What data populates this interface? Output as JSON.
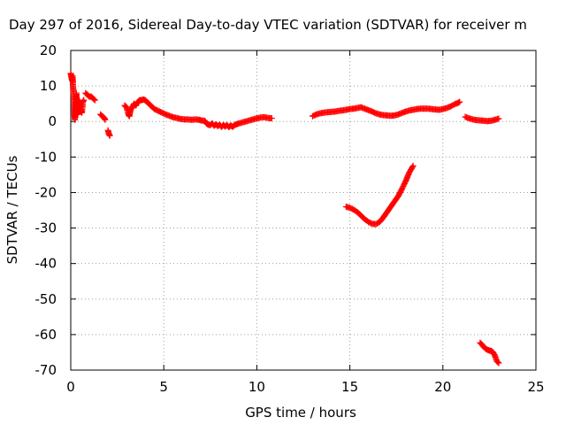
{
  "chart_data": {
    "type": "scatter",
    "title": "Day 297 of 2016, Sidereal Day-to-day VTEC variation (SDTVAR) for receiver m",
    "xlabel": "GPS time / hours",
    "ylabel": "SDTVAR / TECUs",
    "xlim": [
      0,
      25
    ],
    "ylim": [
      -70,
      20
    ],
    "xticks": [
      0,
      5,
      10,
      15,
      20,
      25
    ],
    "yticks": [
      20,
      10,
      0,
      -10,
      -20,
      -30,
      -40,
      -50,
      -60,
      -70
    ],
    "grid": true,
    "marker": "+",
    "color": "#ff0000",
    "series": [
      {
        "segments": [
          [
            [
              0.0,
              13.5
            ],
            [
              0.02,
              13.0
            ],
            [
              0.05,
              12.0
            ],
            [
              0.08,
              11.5
            ],
            [
              0.1,
              12.8
            ],
            [
              0.12,
              10.0
            ],
            [
              0.15,
              8.0
            ],
            [
              0.18,
              6.0
            ],
            [
              0.2,
              2.0
            ],
            [
              0.22,
              0.5
            ],
            [
              0.25,
              4.0
            ],
            [
              0.28,
              6.5
            ],
            [
              0.3,
              8.0
            ],
            [
              0.32,
              5.0
            ],
            [
              0.35,
              3.0
            ],
            [
              0.38,
              2.0
            ],
            [
              0.4,
              4.5
            ],
            [
              0.45,
              6.0
            ],
            [
              0.5,
              5.0
            ],
            [
              0.55,
              3.0
            ],
            [
              0.6,
              2.5
            ],
            [
              0.65,
              5.5
            ],
            [
              0.7,
              6.0
            ]
          ],
          [
            [
              0.8,
              8.0
            ],
            [
              0.9,
              7.5
            ],
            [
              1.0,
              7.0
            ],
            [
              1.1,
              7.0
            ],
            [
              1.2,
              6.5
            ],
            [
              1.3,
              6.0
            ]
          ],
          [
            [
              1.6,
              2.0
            ],
            [
              1.7,
              1.5
            ],
            [
              1.8,
              1.0
            ],
            [
              1.85,
              0.5
            ]
          ],
          [
            [
              2.0,
              -2.5
            ],
            [
              2.05,
              -3.5
            ],
            [
              2.1,
              -4.0
            ]
          ],
          [
            [
              2.9,
              4.5
            ],
            [
              3.0,
              4.0
            ],
            [
              3.1,
              2.0
            ],
            [
              3.15,
              1.5
            ],
            [
              3.2,
              3.0
            ],
            [
              3.3,
              4.0
            ],
            [
              3.4,
              5.0
            ],
            [
              3.5,
              4.5
            ],
            [
              3.6,
              5.5
            ],
            [
              3.7,
              6.0
            ],
            [
              3.8,
              6.0
            ],
            [
              3.9,
              6.2
            ],
            [
              4.0,
              6.0
            ],
            [
              4.1,
              5.5
            ],
            [
              4.2,
              5.0
            ],
            [
              4.3,
              4.5
            ],
            [
              4.4,
              4.0
            ],
            [
              4.5,
              3.5
            ],
            [
              4.7,
              3.0
            ],
            [
              4.9,
              2.5
            ],
            [
              5.1,
              2.0
            ],
            [
              5.3,
              1.6
            ],
            [
              5.5,
              1.2
            ],
            [
              5.7,
              1.0
            ],
            [
              5.9,
              0.7
            ],
            [
              6.1,
              0.6
            ],
            [
              6.3,
              0.6
            ],
            [
              6.5,
              0.5
            ],
            [
              6.7,
              0.6
            ],
            [
              6.9,
              0.5
            ],
            [
              7.0,
              0.3
            ],
            [
              7.2,
              0.2
            ],
            [
              7.3,
              -0.6
            ],
            [
              7.4,
              -0.9
            ],
            [
              7.5,
              -1.0
            ],
            [
              7.6,
              -0.5
            ],
            [
              7.7,
              -1.2
            ],
            [
              7.8,
              -0.8
            ],
            [
              7.9,
              -1.3
            ],
            [
              8.0,
              -0.9
            ],
            [
              8.1,
              -1.5
            ],
            [
              8.2,
              -1.0
            ],
            [
              8.3,
              -1.4
            ],
            [
              8.4,
              -1.0
            ],
            [
              8.5,
              -1.6
            ],
            [
              8.6,
              -1.1
            ],
            [
              8.7,
              -1.5
            ],
            [
              8.8,
              -1.0
            ],
            [
              8.9,
              -0.8
            ],
            [
              9.0,
              -0.6
            ],
            [
              9.2,
              -0.3
            ],
            [
              9.4,
              0.0
            ],
            [
              9.6,
              0.3
            ],
            [
              9.8,
              0.6
            ],
            [
              10.0,
              0.9
            ],
            [
              10.2,
              1.1
            ],
            [
              10.4,
              1.2
            ],
            [
              10.6,
              1.0
            ],
            [
              10.8,
              0.9
            ]
          ],
          [
            [
              13.0,
              1.5
            ],
            [
              13.2,
              2.0
            ],
            [
              13.4,
              2.3
            ],
            [
              13.6,
              2.5
            ],
            [
              13.8,
              2.6
            ],
            [
              14.0,
              2.7
            ],
            [
              14.2,
              2.8
            ],
            [
              14.4,
              3.0
            ],
            [
              14.6,
              3.1
            ],
            [
              14.8,
              3.3
            ],
            [
              15.0,
              3.5
            ],
            [
              15.2,
              3.6
            ],
            [
              15.4,
              3.8
            ],
            [
              15.6,
              4.0
            ],
            [
              15.8,
              3.6
            ],
            [
              16.0,
              3.2
            ],
            [
              16.2,
              2.8
            ],
            [
              16.4,
              2.3
            ],
            [
              16.6,
              2.0
            ],
            [
              16.8,
              1.8
            ],
            [
              17.0,
              1.7
            ],
            [
              17.2,
              1.6
            ],
            [
              17.4,
              1.7
            ],
            [
              17.6,
              2.0
            ],
            [
              17.8,
              2.4
            ],
            [
              18.0,
              2.8
            ],
            [
              18.2,
              3.1
            ],
            [
              18.4,
              3.3
            ],
            [
              18.6,
              3.5
            ],
            [
              18.8,
              3.6
            ],
            [
              19.0,
              3.6
            ],
            [
              19.2,
              3.6
            ],
            [
              19.4,
              3.5
            ],
            [
              19.6,
              3.4
            ],
            [
              19.8,
              3.3
            ],
            [
              20.0,
              3.5
            ],
            [
              20.2,
              3.8
            ],
            [
              20.4,
              4.2
            ],
            [
              20.6,
              4.8
            ],
            [
              20.8,
              5.2
            ],
            [
              20.9,
              5.5
            ]
          ],
          [
            [
              14.8,
              -24.0
            ],
            [
              15.0,
              -24.3
            ],
            [
              15.2,
              -24.8
            ],
            [
              15.4,
              -25.5
            ],
            [
              15.6,
              -26.5
            ],
            [
              15.8,
              -27.5
            ],
            [
              16.0,
              -28.3
            ],
            [
              16.2,
              -28.8
            ],
            [
              16.4,
              -28.9
            ],
            [
              16.6,
              -28.3
            ],
            [
              16.8,
              -27.0
            ],
            [
              17.0,
              -25.5
            ],
            [
              17.2,
              -24.0
            ],
            [
              17.4,
              -22.5
            ],
            [
              17.6,
              -21.0
            ],
            [
              17.8,
              -19.0
            ],
            [
              18.0,
              -16.8
            ],
            [
              18.2,
              -14.3
            ],
            [
              18.4,
              -12.5
            ]
          ],
          [
            [
              21.2,
              1.3
            ],
            [
              21.4,
              0.9
            ],
            [
              21.6,
              0.6
            ],
            [
              21.8,
              0.4
            ],
            [
              22.0,
              0.3
            ],
            [
              22.2,
              0.2
            ],
            [
              22.4,
              0.1
            ],
            [
              22.6,
              0.2
            ],
            [
              22.8,
              0.5
            ],
            [
              23.0,
              0.8
            ]
          ],
          [
            [
              22.0,
              -62.3
            ],
            [
              22.1,
              -62.8
            ],
            [
              22.2,
              -63.5
            ],
            [
              22.3,
              -64.0
            ],
            [
              22.4,
              -64.3
            ],
            [
              22.5,
              -64.5
            ],
            [
              22.6,
              -64.6
            ],
            [
              22.7,
              -65.0
            ],
            [
              22.8,
              -66.0
            ],
            [
              22.9,
              -67.5
            ],
            [
              23.0,
              -68.0
            ]
          ]
        ]
      }
    ]
  }
}
